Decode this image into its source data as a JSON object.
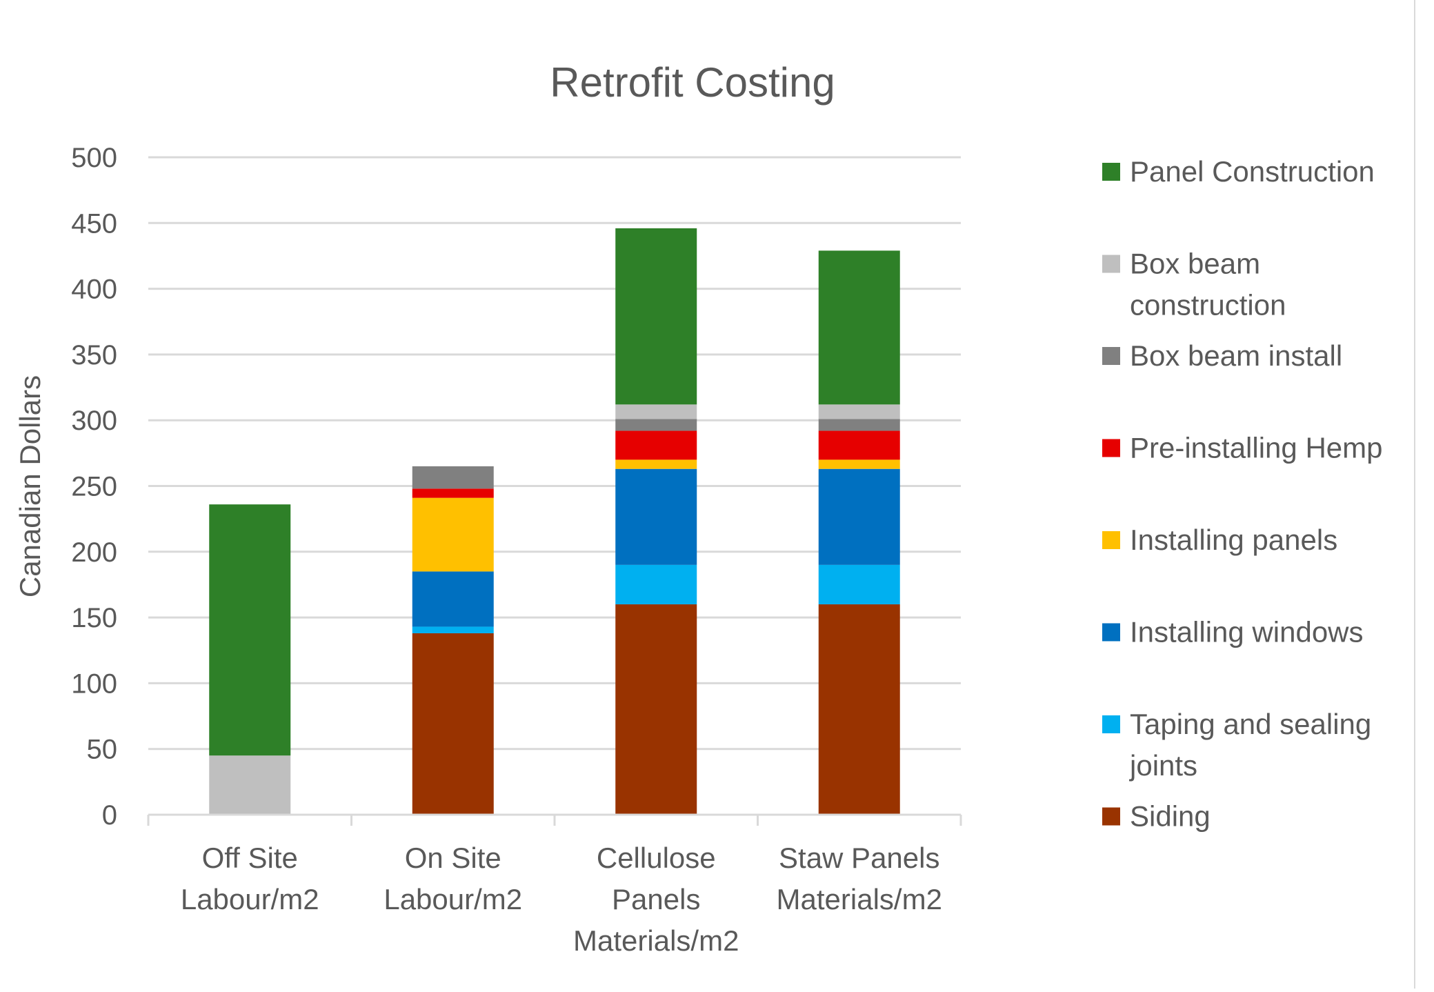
{
  "chart_data": {
    "type": "bar",
    "stacked": true,
    "title": "Retrofit Costing",
    "ylabel": "Canadian Dollars",
    "xlabel": "",
    "ylim": [
      0,
      500
    ],
    "yticks": [
      0,
      50,
      100,
      150,
      200,
      250,
      300,
      350,
      400,
      450,
      500
    ],
    "grid": true,
    "legend_position": "right",
    "categories": [
      [
        "Off Site",
        "Labour/m2"
      ],
      [
        "On Site",
        "Labour/m2"
      ],
      [
        "Cellulose",
        "Panels",
        "Materials/m2"
      ],
      [
        "Staw Panels",
        "Materials/m2"
      ]
    ],
    "series": [
      {
        "name": "Siding",
        "legend_lines": [
          "Siding"
        ],
        "color": "#993300",
        "values": [
          0,
          138,
          160,
          160
        ]
      },
      {
        "name": "Taping and sealing joints",
        "legend_lines": [
          "Taping and sealing",
          "joints"
        ],
        "color": "#00b0f0",
        "values": [
          0,
          5,
          30,
          30
        ]
      },
      {
        "name": "Installing windows",
        "legend_lines": [
          "Installing windows"
        ],
        "color": "#0070c0",
        "values": [
          0,
          42,
          73,
          73
        ]
      },
      {
        "name": "Installing panels",
        "legend_lines": [
          "Installing panels"
        ],
        "color": "#ffc000",
        "values": [
          0,
          56,
          7,
          7
        ]
      },
      {
        "name": "Pre-installing Hemp",
        "legend_lines": [
          "Pre-installing Hemp"
        ],
        "color": "#e60000",
        "values": [
          0,
          7,
          22,
          22
        ]
      },
      {
        "name": "Box beam install",
        "legend_lines": [
          "Box beam install"
        ],
        "color": "#808080",
        "values": [
          0,
          17,
          9,
          9
        ]
      },
      {
        "name": "Box beam construction",
        "legend_lines": [
          "Box beam",
          "construction"
        ],
        "color": "#bfbfbf",
        "values": [
          45,
          0,
          11,
          11
        ]
      },
      {
        "name": "Panel Construction",
        "legend_lines": [
          "Panel Construction"
        ],
        "color": "#2e8028",
        "values": [
          191,
          0,
          134,
          117
        ]
      }
    ]
  }
}
